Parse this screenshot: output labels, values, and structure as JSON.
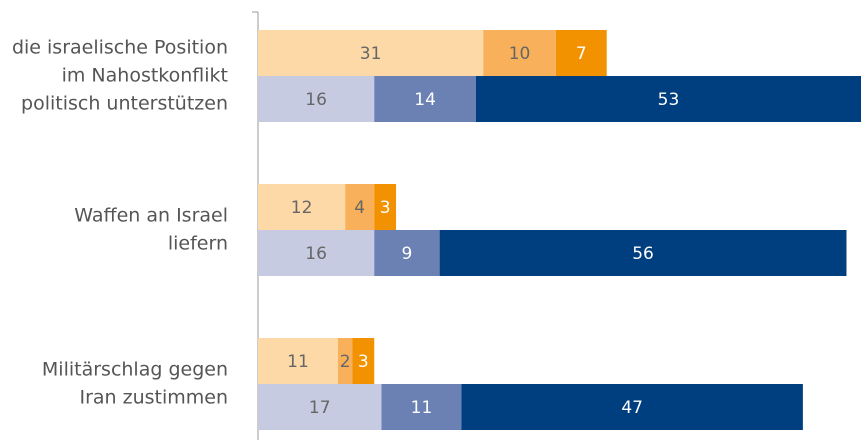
{
  "chart_data": {
    "type": "bar",
    "categories": [
      [
        "die israelische Position",
        "im Nahostkonflikt",
        "politisch unterstützen"
      ],
      [
        "Waffen an Israel",
        "liefern"
      ],
      [
        "Militärschlag gegen",
        "Iran zustimmen"
      ]
    ],
    "groups": [
      {
        "series": [
          {
            "color": "#fdd9a8",
            "values": [
              31,
              12,
              11
            ]
          },
          {
            "color": "#f8b15a",
            "values": [
              10,
              4,
              2
            ]
          },
          {
            "color": "#f39200",
            "values": [
              7,
              3,
              3
            ]
          }
        ]
      },
      {
        "series": [
          {
            "color": "#c6cbe2",
            "values": [
              16,
              16,
              17
            ]
          },
          {
            "color": "#6b80b3",
            "values": [
              14,
              9,
              11
            ]
          },
          {
            "color": "#003f7f",
            "values": [
              53,
              56,
              47
            ]
          }
        ]
      }
    ],
    "xlim": [
      0,
      83
    ]
  }
}
